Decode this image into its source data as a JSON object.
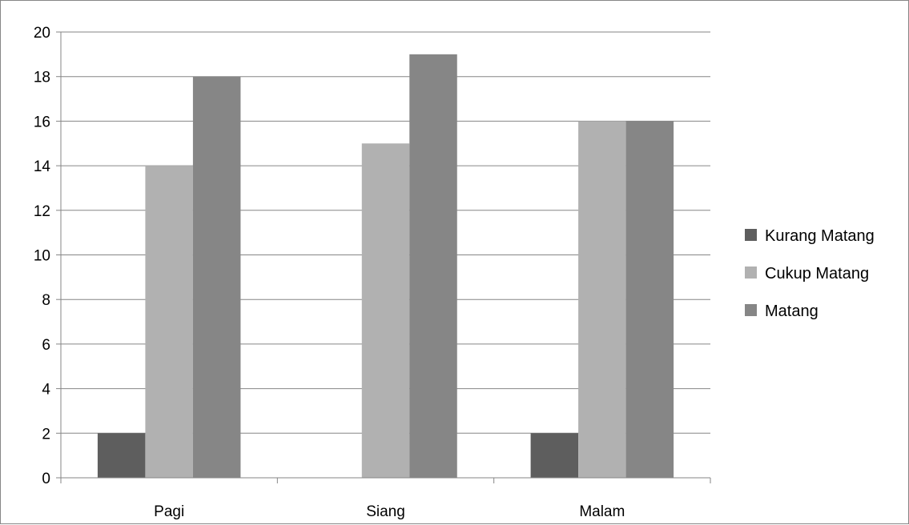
{
  "chart_data": {
    "type": "bar",
    "categories": [
      "Pagi",
      "Siang",
      "Malam"
    ],
    "series": [
      {
        "name": "Kurang Matang",
        "values": [
          2,
          0,
          2
        ],
        "color": "#5e5e5e"
      },
      {
        "name": "Cukup Matang",
        "values": [
          14,
          15,
          16
        ],
        "color": "#b1b1b1"
      },
      {
        "name": "Matang",
        "values": [
          18,
          19,
          16
        ],
        "color": "#868686"
      }
    ],
    "ylim": [
      0,
      20
    ],
    "yticks": [
      0,
      2,
      4,
      6,
      8,
      10,
      12,
      14,
      16,
      18,
      20
    ],
    "grid": true,
    "legend_position": "right"
  }
}
